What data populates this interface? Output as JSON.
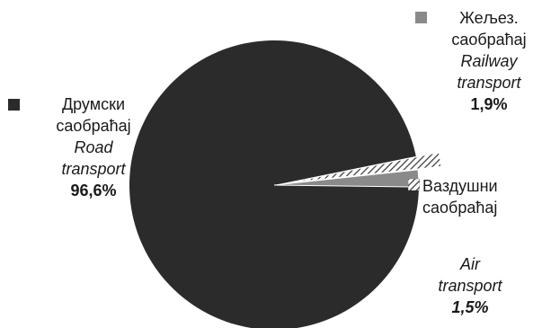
{
  "chart_data": {
    "type": "pie",
    "start_angle_deg": -11.5,
    "slices": [
      {
        "name_sr": "Друмски саобраћај",
        "name_en": "Road transport",
        "value": 96.6,
        "label": "96,6%",
        "color": "#2b2b2b"
      },
      {
        "name_sr": "Жељез. саобраћај",
        "name_en": "Railway transport",
        "value": 1.9,
        "label": "1,9%",
        "color": "#8a8a8a"
      },
      {
        "name_sr": "Ваздушни саобраћај",
        "name_en": "Air transport",
        "value": 1.5,
        "label": "1,5%",
        "color": "hatched"
      }
    ]
  },
  "legend": {
    "road": {
      "sr_line1": "Друмски",
      "sr_line2": "саобраћај",
      "en_line1": "Road",
      "en_line2": "transport",
      "pct": "96,6%"
    },
    "rail": {
      "sr_line1": "Жељез.",
      "sr_line2": "саобраћај",
      "en_line1": "Railway",
      "en_line2": "transport",
      "pct": "1,9%"
    },
    "air": {
      "sr_line1": "Ваздушни",
      "sr_line2": "саобраћај",
      "en_line1": "Air",
      "en_line2": "transport",
      "pct": "1,5%"
    }
  }
}
